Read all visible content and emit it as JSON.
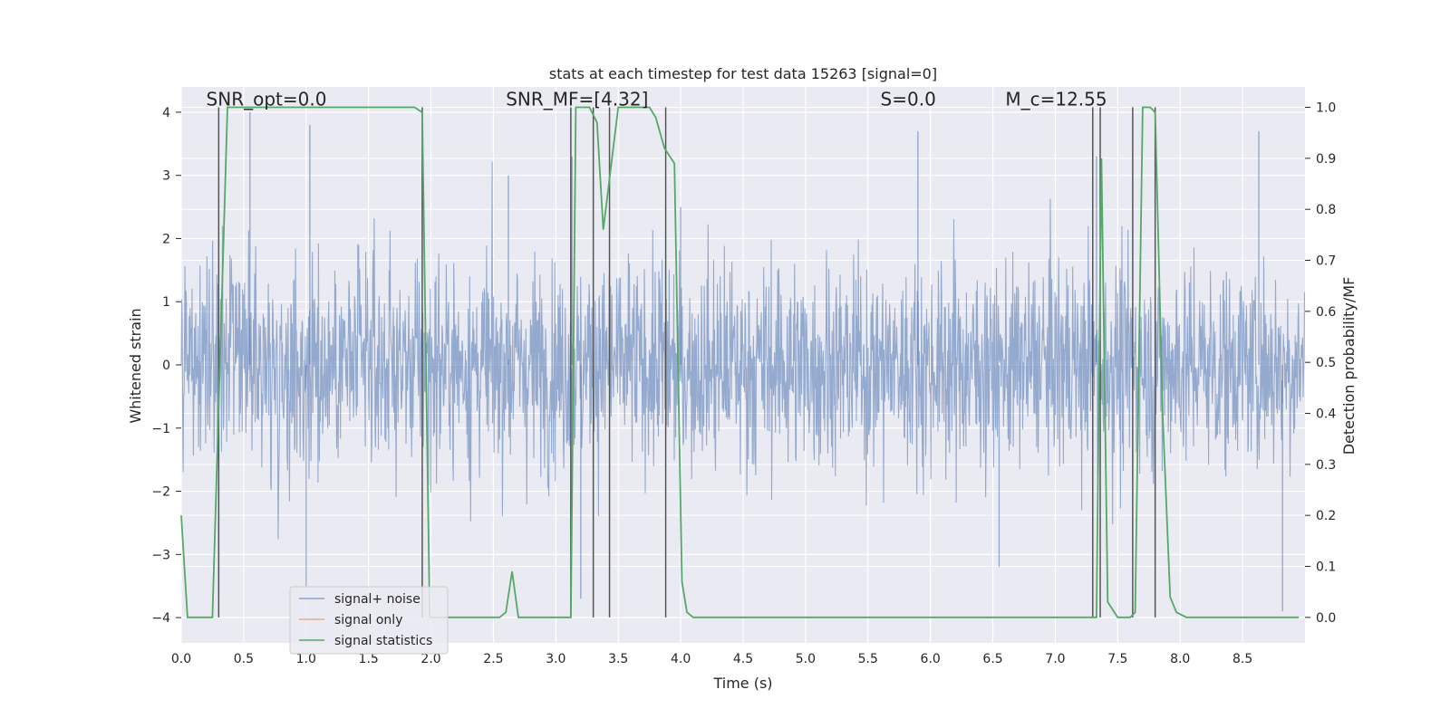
{
  "chart_data": {
    "type": "line",
    "title": "stats at each timestep for test data 15263 [signal=0]",
    "xlabel": "Time (s)",
    "ylabel_left": "Whitened strain",
    "ylabel_right": "Detection probability/MF",
    "xlim": [
      0,
      9.0
    ],
    "ylim_left": [
      -4.4,
      4.4
    ],
    "ylim_right": [
      -0.05,
      1.04
    ],
    "x_ticks": [
      0.0,
      0.5,
      1.0,
      1.5,
      2.0,
      2.5,
      3.0,
      3.5,
      4.0,
      4.5,
      5.0,
      5.5,
      6.0,
      6.5,
      7.0,
      7.5,
      8.0,
      8.5
    ],
    "x_tick_labels": [
      "0.0",
      "0.5",
      "1.0",
      "1.5",
      "2.0",
      "2.5",
      "3.0",
      "3.5",
      "4.0",
      "4.5",
      "5.0",
      "5.5",
      "6.0",
      "6.5",
      "7.0",
      "7.5",
      "8.0",
      "8.5"
    ],
    "y_left_ticks": [
      -4,
      -3,
      -2,
      -1,
      0,
      1,
      2,
      3,
      4
    ],
    "y_left_tick_labels": [
      "−4",
      "−3",
      "−2",
      "−1",
      "0",
      "1",
      "2",
      "3",
      "4"
    ],
    "y_right_ticks": [
      0.0,
      0.1,
      0.2,
      0.3,
      0.4,
      0.5,
      0.6,
      0.7,
      0.8,
      0.9,
      1.0
    ],
    "y_right_tick_labels": [
      "0.0",
      "0.1",
      "0.2",
      "0.3",
      "0.4",
      "0.5",
      "0.6",
      "0.7",
      "0.8",
      "0.9",
      "1.0"
    ],
    "grid": true,
    "noise": {
      "duration_s": 9.0,
      "typical_std": 0.9,
      "max_abs": 3.9,
      "sample_points": [
        [
          0.3,
          -3.6
        ],
        [
          0.55,
          4.0
        ],
        [
          1.0,
          -3.5
        ],
        [
          1.03,
          3.8
        ],
        [
          2.62,
          3.0
        ],
        [
          3.13,
          3.3
        ],
        [
          3.2,
          -3.7
        ],
        [
          4.0,
          2.5
        ],
        [
          5.9,
          3.7
        ],
        [
          6.55,
          -3.2
        ],
        [
          7.33,
          3.3
        ],
        [
          8.63,
          3.7
        ],
        [
          8.82,
          -3.9
        ]
      ]
    },
    "series": [
      {
        "name": "signal+ noise",
        "color": "#4c72b0",
        "style": "line",
        "axis": "left"
      },
      {
        "name": "signal only",
        "color": "#dd8452",
        "style": "line",
        "axis": "left",
        "values": []
      },
      {
        "name": "signal statistics",
        "color": "#55a868",
        "style": "line",
        "axis": "right",
        "x": [
          0.0,
          0.05,
          0.25,
          0.31,
          0.37,
          0.4,
          1.0,
          1.5,
          1.7,
          1.87,
          1.93,
          1.99,
          2.05,
          2.3,
          2.55,
          2.6,
          2.65,
          2.7,
          2.9,
          3.05,
          3.12,
          3.16,
          3.2,
          3.27,
          3.33,
          3.38,
          3.45,
          3.5,
          3.6,
          3.75,
          3.8,
          3.87,
          3.95,
          4.01,
          4.05,
          4.1,
          5.0,
          6.0,
          7.0,
          7.3,
          7.33,
          7.37,
          7.42,
          7.5,
          7.6,
          7.64,
          7.7,
          7.76,
          7.8,
          7.86,
          7.92,
          7.97,
          8.05,
          8.5,
          8.8,
          8.95
        ],
        "y": [
          0.2,
          0.0,
          0.0,
          0.5,
          1.0,
          1.0,
          1.0,
          1.0,
          1.0,
          1.0,
          0.99,
          0.0,
          0.0,
          0.0,
          0.0,
          0.01,
          0.09,
          0.0,
          0.0,
          0.0,
          0.0,
          1.0,
          1.0,
          1.0,
          0.97,
          0.76,
          0.9,
          1.0,
          1.0,
          1.0,
          0.98,
          0.92,
          0.89,
          0.07,
          0.01,
          0.0,
          0.0,
          0.0,
          0.0,
          0.0,
          0.0,
          0.9,
          0.03,
          0.0,
          0.0,
          0.01,
          1.0,
          1.0,
          0.99,
          0.4,
          0.04,
          0.01,
          0.0,
          0.0,
          0.0,
          0.0
        ]
      }
    ],
    "event_lines_x": [
      0.3,
      1.93,
      3.12,
      3.3,
      3.43,
      3.88,
      7.3,
      7.36,
      7.62,
      7.8
    ],
    "event_line_color": "#555555",
    "annotations": [
      {
        "label": "SNR_opt=0.0",
        "x": 0.2,
        "y_right": 1.0
      },
      {
        "label": "SNR_MF=[4.32]",
        "x": 2.6,
        "y_right": 1.0
      },
      {
        "label": "S=0.0",
        "x": 5.6,
        "y_right": 1.0
      },
      {
        "label": "M_c=12.55",
        "x": 6.6,
        "y_right": 1.0
      }
    ],
    "legend": {
      "placement": "lower-left",
      "entries": [
        "signal+ noise",
        "signal only",
        "signal statistics"
      ]
    }
  }
}
